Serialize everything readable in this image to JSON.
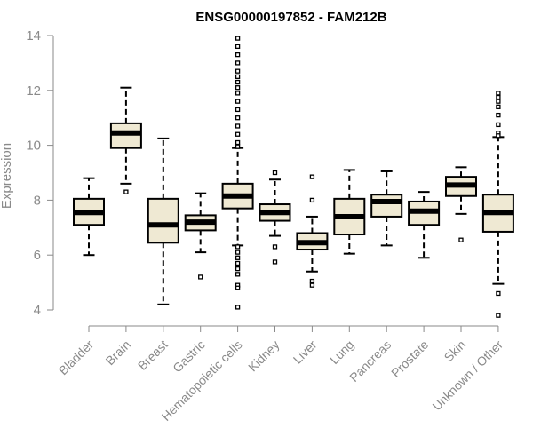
{
  "chart_data": {
    "type": "boxplot",
    "title": "ENSG00000197852 - FAM212B",
    "xlabel": "",
    "ylabel": "Expression",
    "ylim": [
      3.7,
      14.1
    ],
    "yticks": [
      4,
      6,
      8,
      10,
      12,
      14
    ],
    "colors": {
      "box_fill": "#efe9d3",
      "stroke": "#000000",
      "axis": "#8a8a8a"
    },
    "categories": [
      "Bladder",
      "Brain",
      "Breast",
      "Gastric",
      "Hematopoietic cells",
      "Kidney",
      "Liver",
      "Lung",
      "Pancreas",
      "Prostate",
      "Skin",
      "Unknown / Other"
    ],
    "boxes": [
      {
        "category": "Bladder",
        "min": 6.0,
        "q1": 7.1,
        "median": 7.55,
        "q3": 8.05,
        "max": 8.8,
        "outliers": []
      },
      {
        "category": "Brain",
        "min": 8.6,
        "q1": 9.9,
        "median": 10.45,
        "q3": 10.8,
        "max": 12.1,
        "outliers": [
          8.3
        ]
      },
      {
        "category": "Breast",
        "min": 4.2,
        "q1": 6.45,
        "median": 7.1,
        "q3": 8.05,
        "max": 10.25,
        "outliers": []
      },
      {
        "category": "Gastric",
        "min": 6.1,
        "q1": 6.9,
        "median": 7.2,
        "q3": 7.45,
        "max": 8.25,
        "outliers": [
          5.2
        ]
      },
      {
        "category": "Hematopoietic cells",
        "min": 6.35,
        "q1": 7.7,
        "median": 8.15,
        "q3": 8.6,
        "max": 9.9,
        "outliers": [
          13.9,
          13.6,
          13.3,
          13.0,
          12.7,
          12.5,
          12.3,
          12.1,
          11.9,
          11.6,
          11.3,
          11.0,
          10.7,
          10.4,
          10.1,
          9.95,
          6.3,
          6.1,
          5.9,
          5.7,
          5.5,
          5.3,
          4.9,
          4.8,
          4.1
        ]
      },
      {
        "category": "Kidney",
        "min": 6.7,
        "q1": 7.25,
        "median": 7.55,
        "q3": 7.85,
        "max": 8.75,
        "outliers": [
          9.0,
          6.3,
          5.75
        ]
      },
      {
        "category": "Liver",
        "min": 5.4,
        "q1": 6.2,
        "median": 6.45,
        "q3": 6.8,
        "max": 7.4,
        "outliers": [
          8.85,
          8.0,
          5.05,
          4.9
        ]
      },
      {
        "category": "Lung",
        "min": 6.05,
        "q1": 6.75,
        "median": 7.4,
        "q3": 8.05,
        "max": 9.1,
        "outliers": []
      },
      {
        "category": "Pancreas",
        "min": 6.35,
        "q1": 7.4,
        "median": 7.95,
        "q3": 8.2,
        "max": 9.05,
        "outliers": []
      },
      {
        "category": "Prostate",
        "min": 5.9,
        "q1": 7.1,
        "median": 7.6,
        "q3": 7.95,
        "max": 8.3,
        "outliers": []
      },
      {
        "category": "Skin",
        "min": 7.5,
        "q1": 8.15,
        "median": 8.55,
        "q3": 8.85,
        "max": 9.2,
        "outliers": [
          6.55
        ]
      },
      {
        "category": "Unknown / Other",
        "min": 4.95,
        "q1": 6.85,
        "median": 7.55,
        "q3": 8.2,
        "max": 10.3,
        "outliers": [
          11.9,
          11.75,
          11.6,
          11.4,
          11.1,
          10.75,
          10.45,
          10.35,
          4.6,
          3.8
        ]
      }
    ]
  }
}
